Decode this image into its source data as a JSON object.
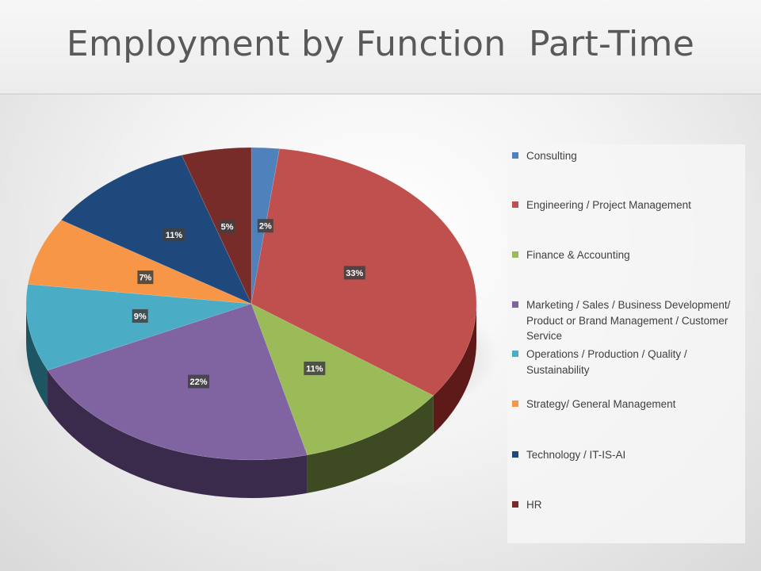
{
  "title": "Employment by Function  Part-Time",
  "chart_data": {
    "type": "pie",
    "title": "Employment by Function  Part-Time",
    "legend_position": "right",
    "slices": [
      {
        "label": "Consulting",
        "value": 2,
        "data_label": "2%",
        "color": "#4f81bd",
        "side": "#2e4d73"
      },
      {
        "label": "Engineering / Project Management",
        "value": 33,
        "data_label": "33%",
        "color": "#c0504d",
        "side": "#5e1a19"
      },
      {
        "label": "Finance & Accounting",
        "value": 11,
        "data_label": "11%",
        "color": "#9bbb59",
        "side": "#3d4a22"
      },
      {
        "label": "Marketing / Sales / Business Development/ Product or Brand Management / Customer Service",
        "value": 22,
        "data_label": "22%",
        "color": "#8064a2",
        "side": "#3a2b4d"
      },
      {
        "label": "Operations / Production / Quality / Sustainability",
        "value": 9,
        "data_label": "9%",
        "color": "#4bacc6",
        "side": "#1d5563"
      },
      {
        "label": "Strategy/ General Management",
        "value": 7,
        "data_label": "7%",
        "color": "#f79646",
        "side": "#7a441a"
      },
      {
        "label": "Technology / IT-IS-AI",
        "value": 11,
        "data_label": "11%",
        "color": "#1f497d",
        "side": "#0e2340"
      },
      {
        "label": "HR",
        "value": 5,
        "data_label": "5%",
        "color": "#772c2a",
        "side": "#3b1514"
      }
    ]
  }
}
